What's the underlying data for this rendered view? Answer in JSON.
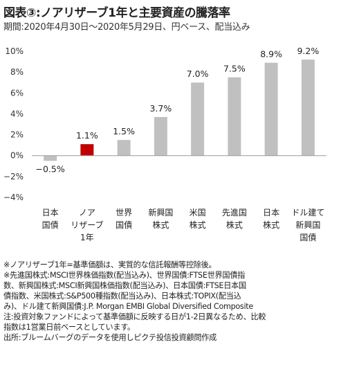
{
  "header": {
    "title": "図表③:ノアリザーブ1年と主要資産の騰落率",
    "subtitle": "期間:2020年4月30日〜2020年5月29日、円ベース、配当込み"
  },
  "chart_data": {
    "type": "bar",
    "categories": [
      [
        "日本",
        "国債"
      ],
      [
        "ノア",
        "リザーブ",
        "1年"
      ],
      [
        "世界",
        "国債"
      ],
      [
        "新興国",
        "株式"
      ],
      [
        "米国",
        "株式"
      ],
      [
        "先進国",
        "株式"
      ],
      [
        "日本",
        "株式"
      ],
      [
        "ドル建て",
        "新興国",
        "国債"
      ]
    ],
    "values": [
      -0.5,
      1.1,
      1.5,
      3.7,
      7.0,
      7.5,
      8.9,
      9.2
    ],
    "value_labels": [
      "−0.5%",
      "1.1%",
      "1.5%",
      "3.7%",
      "7.0%",
      "7.5%",
      "8.9%",
      "9.2%"
    ],
    "highlight_index": 1,
    "colors": {
      "default": "#c0c0c0",
      "highlight": "#c00000"
    },
    "ylim": [
      -4,
      10
    ],
    "yticks": [
      10,
      8,
      6,
      4,
      2,
      0,
      -2,
      -4
    ],
    "ytick_labels": [
      "10%",
      "8%",
      "6%",
      "4%",
      "2%",
      "0%",
      "−2%",
      "−4%"
    ],
    "grid": false,
    "xlabel": "",
    "ylabel": ""
  },
  "notes": [
    "※ノアリザーブ1年=基準価額は、実質的な信託報酬等控除後。",
    "※先進国株式:MSCI世界株価指数(配当込み)、世界国債:FTSE世界国債指",
    "数、新興国株式:MSCI新興国株価指数(配当込み)、日本国債:FTSE日本国",
    "債指数、米国株式:S&P500種指数(配当込み)、日本株式:TOPIX(配当込",
    "み)、ドル建て新興国債:J.P. Morgan EMBI Global Diversified Composite",
    "注:投資対象ファンドによって基準価額に反映する日が1-2日異なるため、比較",
    "指数は1営業日前ベースとしています。",
    "出所:ブルームバーグのデータを使用しピクテ投信投資顧問作成"
  ]
}
